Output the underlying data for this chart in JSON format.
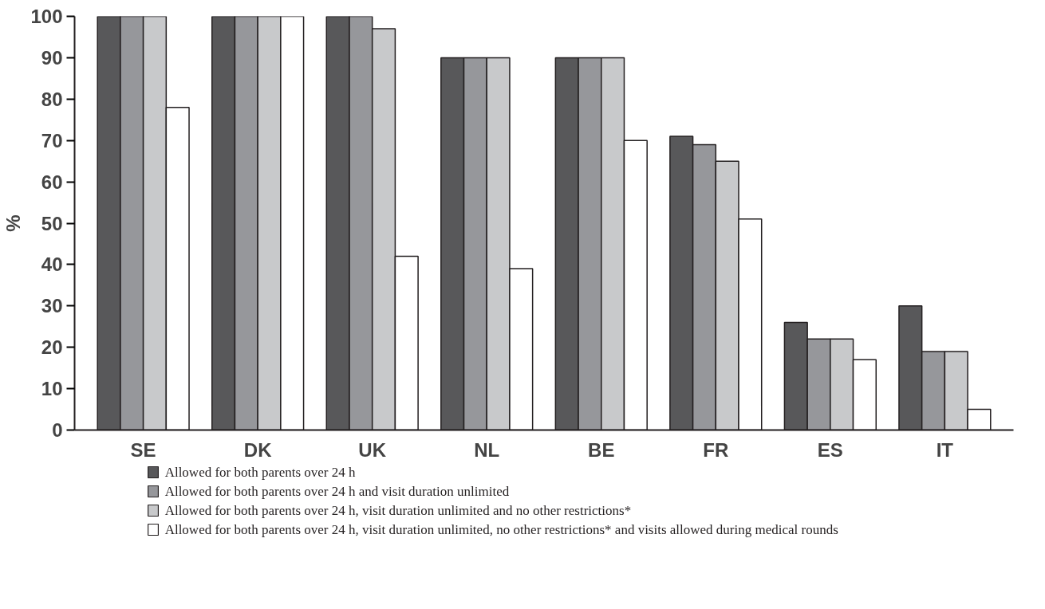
{
  "chart_data": {
    "type": "bar",
    "ylabel": "%",
    "categories": [
      "SE",
      "DK",
      "UK",
      "NL",
      "BE",
      "FR",
      "ES",
      "IT"
    ],
    "series": [
      {
        "name": "Allowed for both parents over 24 h",
        "color": "#58585a",
        "values": [
          100,
          100,
          100,
          90,
          90,
          71,
          26,
          30
        ]
      },
      {
        "name": "Allowed for both parents over 24 h and visit duration unlimited",
        "color": "#96979b",
        "values": [
          100,
          100,
          100,
          90,
          90,
          69,
          22,
          19
        ]
      },
      {
        "name": "Allowed for both parents over 24 h, visit duration unlimited and no other restrictions*",
        "color": "#c8c9cb",
        "values": [
          100,
          100,
          97,
          90,
          90,
          65,
          22,
          19
        ]
      },
      {
        "name": "Allowed for both parents over 24 h, visit duration unlimited, no other restrictions* and visits allowed during medical rounds",
        "color": "#ffffff",
        "values": [
          78,
          100,
          42,
          39,
          70,
          51,
          17,
          5
        ]
      }
    ],
    "ylim": [
      0,
      100
    ],
    "yticks": [
      0,
      10,
      20,
      30,
      40,
      50,
      60,
      70,
      80,
      90,
      100
    ],
    "grid": false,
    "legend": "bottom"
  }
}
